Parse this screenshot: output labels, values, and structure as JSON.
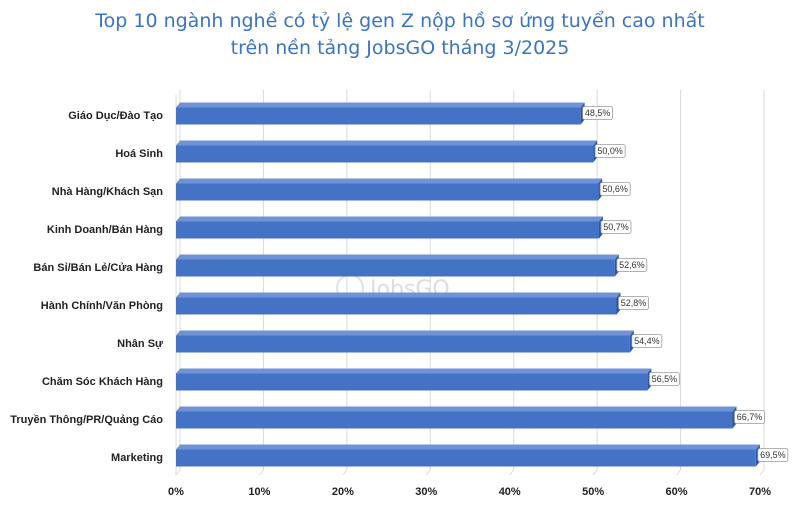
{
  "title": {
    "line1": "Top 10 ngành nghề có tỷ lệ gen Z nộp hồ sơ ứng tuyển cao nhất",
    "line2": "trên nền tảng JobsGO tháng 3/2025"
  },
  "watermark": "JobsGO",
  "colors": {
    "title": "#3a74c4",
    "bar": "#4472c4",
    "bar_top": "#6f93d6",
    "bar_side": "#2f55a0",
    "grid": "#d9d9d9"
  },
  "chart_data": {
    "type": "bar",
    "orientation": "horizontal",
    "title": "Top 10 ngành nghề có tỷ lệ gen Z nộp hồ sơ ứng tuyển cao nhất trên nền tảng JobsGO tháng 3/2025",
    "categories": [
      "Giáo Dục/Đào Tạo",
      "Hoá Sinh",
      "Nhà Hàng/Khách Sạn",
      "Kinh Doanh/Bán Hàng",
      "Bán Sỉ/Bán Lẻ/Cửa Hàng",
      "Hành Chính/Văn Phòng",
      "Nhân Sự",
      "Chăm Sóc Khách Hàng",
      "Truyền Thông/PR/Quảng Cáo",
      "Marketing"
    ],
    "values": [
      48.5,
      50.0,
      50.6,
      50.7,
      52.6,
      52.8,
      54.4,
      56.5,
      66.7,
      69.5
    ],
    "data_labels": [
      "48,5%",
      "50,0%",
      "50,6%",
      "50,7%",
      "52,6%",
      "52,8%",
      "54,4%",
      "56,5%",
      "66,7%",
      "69,5%"
    ],
    "x_ticks": [
      0,
      10,
      20,
      30,
      40,
      50,
      60,
      70
    ],
    "x_tick_labels": [
      "0%",
      "10%",
      "20%",
      "30%",
      "40%",
      "50%",
      "60%",
      "70%"
    ],
    "xlim": [
      0,
      70
    ],
    "xlabel": "",
    "ylabel": "",
    "grid": true
  }
}
